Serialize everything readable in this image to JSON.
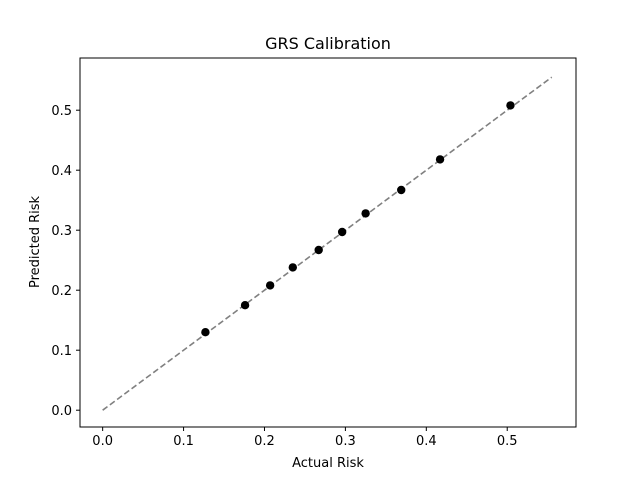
{
  "chart_data": {
    "type": "scatter",
    "title": "GRS Calibration",
    "x_label": "Actual Risk",
    "y_label": "Predicted Risk",
    "x": [
      0.127,
      0.176,
      0.207,
      0.235,
      0.267,
      0.296,
      0.325,
      0.369,
      0.417,
      0.504
    ],
    "y": [
      0.13,
      0.175,
      0.208,
      0.238,
      0.267,
      0.297,
      0.328,
      0.367,
      0.418,
      0.508
    ],
    "color": "#000000",
    "reference_line": {
      "x": [
        0,
        0.555
      ],
      "y": [
        0,
        0.555
      ],
      "color": "#808080",
      "dashed": true
    },
    "xlim": [
      -0.028,
      0.585
    ],
    "ylim": [
      -0.028,
      0.587
    ],
    "xticks": [
      {
        "value": 0,
        "label": "0.0"
      },
      0.1,
      0.2,
      0.3,
      0.4,
      0.5
    ],
    "yticks": [
      {
        "value": 0,
        "label": "0.0"
      },
      0.1,
      0.2,
      0.3,
      0.4,
      0.5
    ],
    "grid": false
  }
}
